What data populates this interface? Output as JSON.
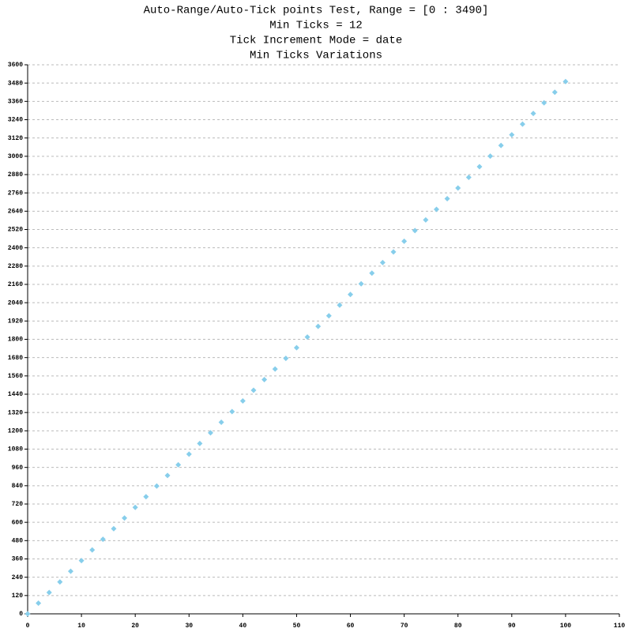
{
  "chart_data": {
    "type": "scatter",
    "title": "Auto-Range/Auto-Tick points Test, Range = [0 : 3490]",
    "subtitles": [
      "Min Ticks = 12",
      "Tick Increment Mode = date",
      "Min Ticks Variations"
    ],
    "x": [
      0,
      2,
      4,
      6,
      8,
      10,
      12,
      14,
      16,
      18,
      20,
      22,
      24,
      26,
      28,
      30,
      32,
      34,
      36,
      38,
      40,
      42,
      44,
      46,
      48,
      50,
      52,
      54,
      56,
      58,
      60,
      62,
      64,
      66,
      68,
      70,
      72,
      74,
      76,
      78,
      80,
      82,
      84,
      86,
      88,
      90,
      92,
      94,
      96,
      98,
      100
    ],
    "values": [
      0,
      69.8,
      139.6,
      209.4,
      279.2,
      349,
      418.8,
      488.6,
      558.4,
      628.2,
      698,
      767.8,
      837.6,
      907.4,
      977.2,
      1047,
      1116.8,
      1186.6,
      1256.4,
      1326.2,
      1396,
      1465.8,
      1535.6,
      1605.4,
      1675.2,
      1745,
      1814.8,
      1884.6,
      1954.4,
      2024.2,
      2094,
      2163.8,
      2233.6,
      2303.4,
      2373.2,
      2443,
      2512.8,
      2582.6,
      2652.4,
      2722.2,
      2792,
      2861.8,
      2931.6,
      3001.4,
      3071.2,
      3141,
      3210.8,
      3280.6,
      3350.4,
      3420.2,
      3490
    ],
    "color": "#87ceeb",
    "xlim": [
      0,
      110
    ],
    "xticks": [
      0,
      10,
      20,
      30,
      40,
      50,
      60,
      70,
      80,
      90,
      100,
      110
    ],
    "ylim": [
      0,
      3600
    ],
    "yticks": [
      0,
      120,
      240,
      360,
      480,
      600,
      720,
      840,
      960,
      1080,
      1200,
      1320,
      1440,
      1560,
      1680,
      1800,
      1920,
      2040,
      2160,
      2280,
      2400,
      2520,
      2640,
      2760,
      2880,
      3000,
      3120,
      3240,
      3360,
      3480,
      3600
    ],
    "grid": true
  }
}
